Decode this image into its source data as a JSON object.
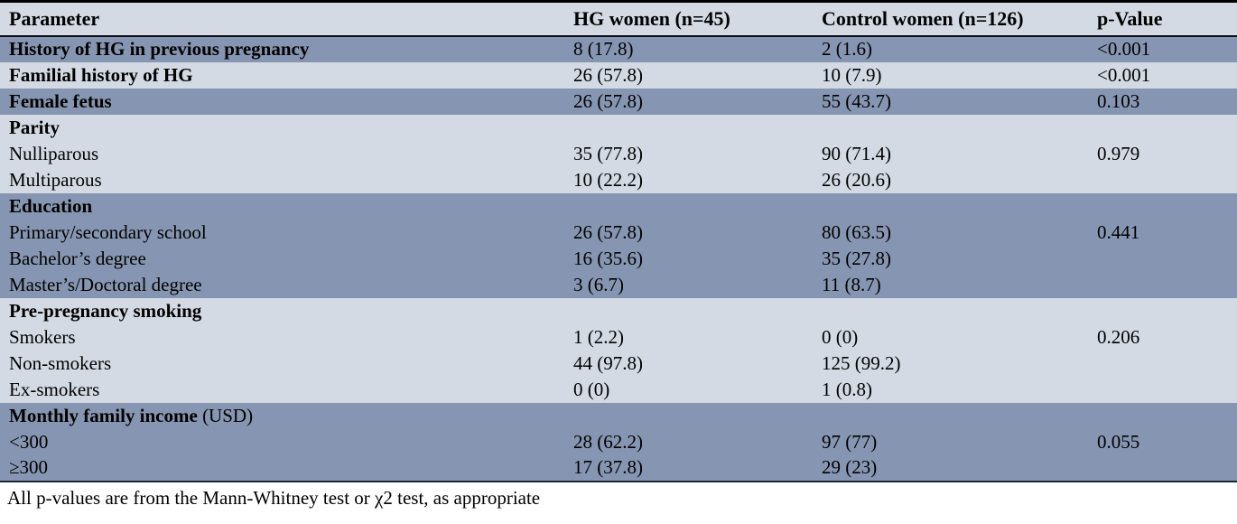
{
  "colors": {
    "band_dark": "#8695B1",
    "band_light": "#D3DAE4",
    "top_border": "#000000",
    "header_rule": "#0a0d12",
    "bottom_rule": "#1f2633",
    "text": "#000000"
  },
  "table": {
    "columns": [
      {
        "label": "Parameter"
      },
      {
        "label": "HG women (n=45)"
      },
      {
        "label": "Control women (n=126)"
      },
      {
        "label": "p-Value"
      }
    ],
    "rows": [
      {
        "label": "History of HG in previous pregnancy",
        "suffix": "",
        "bold": true,
        "hg": "8 (17.8)",
        "control": "2 (1.6)",
        "p": "<0.001",
        "band": "dark"
      },
      {
        "label": "Familial history of HG",
        "suffix": "",
        "bold": true,
        "hg": "26 (57.8)",
        "control": "10 (7.9)",
        "p": "<0.001",
        "band": "light"
      },
      {
        "label": "Female fetus",
        "suffix": "",
        "bold": true,
        "hg": "26 (57.8)",
        "control": "55 (43.7)",
        "p": "0.103",
        "band": "dark"
      },
      {
        "label": "Parity",
        "suffix": "",
        "bold": true,
        "hg": "",
        "control": "",
        "p": "",
        "band": "light"
      },
      {
        "label": "Nulliparous",
        "suffix": "",
        "bold": false,
        "hg": "35 (77.8)",
        "control": "90 (71.4)",
        "p": "0.979",
        "band": "light"
      },
      {
        "label": "Multiparous",
        "suffix": "",
        "bold": false,
        "hg": "10 (22.2)",
        "control": "26 (20.6)",
        "p": "",
        "band": "light"
      },
      {
        "label": "Education",
        "suffix": "",
        "bold": true,
        "hg": "",
        "control": "",
        "p": "",
        "band": "dark"
      },
      {
        "label": "Primary/secondary school",
        "suffix": "",
        "bold": false,
        "hg": "26 (57.8)",
        "control": "80 (63.5)",
        "p": "0.441",
        "band": "dark"
      },
      {
        "label": "Bachelor’s degree",
        "suffix": "",
        "bold": false,
        "hg": "16 (35.6)",
        "control": "35 (27.8)",
        "p": "",
        "band": "dark"
      },
      {
        "label": "Master’s/Doctoral degree",
        "suffix": "",
        "bold": false,
        "hg": "3 (6.7)",
        "control": "11 (8.7)",
        "p": "",
        "band": "dark"
      },
      {
        "label": "Pre-pregnancy smoking",
        "suffix": "",
        "bold": true,
        "hg": "",
        "control": "",
        "p": "",
        "band": "light"
      },
      {
        "label": "Smokers",
        "suffix": "",
        "bold": false,
        "hg": "1 (2.2)",
        "control": "0 (0)",
        "p": "0.206",
        "band": "light"
      },
      {
        "label": "Non-smokers",
        "suffix": "",
        "bold": false,
        "hg": "44 (97.8)",
        "control": "125 (99.2)",
        "p": "",
        "band": "light"
      },
      {
        "label": "Ex-smokers",
        "suffix": "",
        "bold": false,
        "hg": "0 (0)",
        "control": "1 (0.8)",
        "p": "",
        "band": "light"
      },
      {
        "label": "Monthly family income",
        "suffix": " (USD)",
        "bold": true,
        "hg": "",
        "control": "",
        "p": "",
        "band": "dark"
      },
      {
        "label": "<300",
        "suffix": "",
        "bold": false,
        "hg": "28 (62.2)",
        "control": "97 (77)",
        "p": "0.055",
        "band": "dark"
      },
      {
        "label": "≥300",
        "suffix": "",
        "bold": false,
        "hg": "17 (37.8)",
        "control": "29 (23)",
        "p": "",
        "band": "dark"
      }
    ],
    "footnote": "All p-values are from the Mann-Whitney test or χ2 test, as appropriate"
  }
}
